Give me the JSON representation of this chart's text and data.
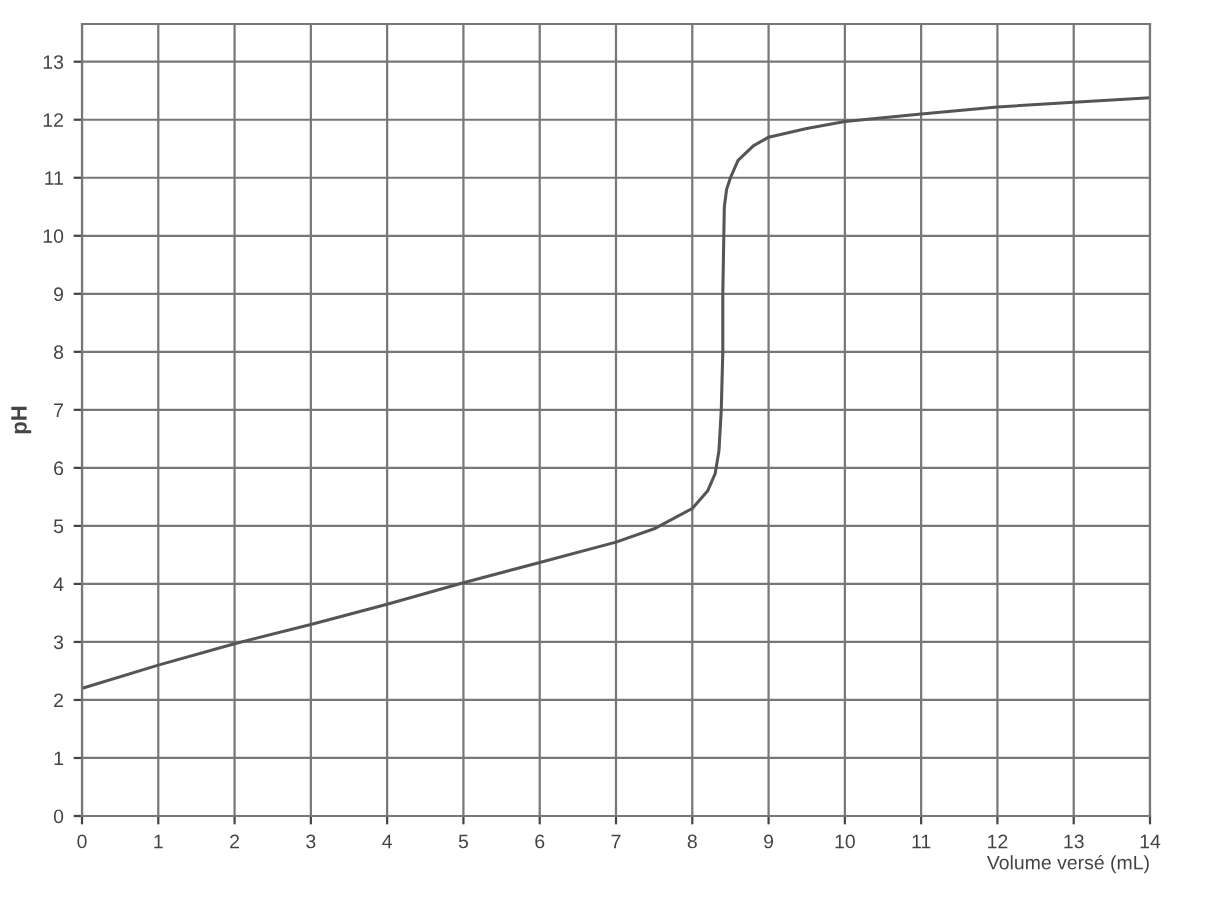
{
  "chart_data": {
    "type": "line",
    "xlabel": "Volume versé (mL)",
    "ylabel": "pH",
    "x": [
      0,
      1,
      2,
      3,
      4,
      5,
      6,
      7,
      7.5,
      8,
      8.2,
      8.3,
      8.35,
      8.38,
      8.4,
      8.4,
      8.42,
      8.45,
      8.5,
      8.6,
      8.8,
      9,
      9.5,
      10,
      11,
      12,
      13,
      14
    ],
    "series": [
      {
        "color": "#555555",
        "values": [
          2.2,
          2.6,
          2.97,
          3.3,
          3.65,
          4.02,
          4.37,
          4.72,
          4.95,
          5.3,
          5.6,
          5.9,
          6.3,
          7,
          8,
          9,
          10.5,
          10.8,
          11,
          11.3,
          11.55,
          11.7,
          11.85,
          11.97,
          12.1,
          12.22,
          12.3,
          12.38
        ]
      }
    ],
    "xlim": [
      0,
      14
    ],
    "ylim": [
      0,
      13.65
    ],
    "xticks": [
      0,
      1,
      2,
      3,
      4,
      5,
      6,
      7,
      8,
      9,
      10,
      11,
      12,
      13,
      14
    ],
    "yticks": [
      0,
      1,
      2,
      3,
      4,
      5,
      6,
      7,
      8,
      9,
      10,
      11,
      12,
      13
    ],
    "grid": true,
    "legend": false,
    "marker": "none",
    "line_style": "solid"
  }
}
